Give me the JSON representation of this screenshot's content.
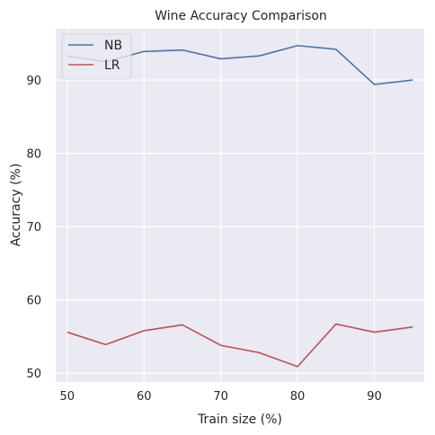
{
  "chart_data": {
    "type": "line",
    "title": "Wine Accuracy Comparison",
    "xlabel": "Train size (%)",
    "ylabel": "Accuracy (%)",
    "x": [
      50,
      55,
      60,
      65,
      70,
      75,
      80,
      85,
      90,
      95
    ],
    "xlim": [
      48.5,
      96.5
    ],
    "ylim": [
      48.8,
      97.0
    ],
    "xticks": [
      50,
      60,
      70,
      80,
      90
    ],
    "yticks": [
      50,
      60,
      70,
      80,
      90
    ],
    "grid": true,
    "legend_position": "top-left",
    "series": [
      {
        "name": "NB",
        "color": "#4c72b0",
        "values": [
          93.3,
          92.5,
          93.9,
          94.1,
          92.9,
          93.3,
          94.7,
          94.2,
          89.4,
          90.0
        ]
      },
      {
        "name": "LR",
        "color": "#c44e52",
        "values": [
          55.6,
          53.9,
          55.8,
          56.6,
          53.8,
          52.8,
          50.9,
          56.7,
          55.6,
          56.3
        ]
      }
    ]
  }
}
